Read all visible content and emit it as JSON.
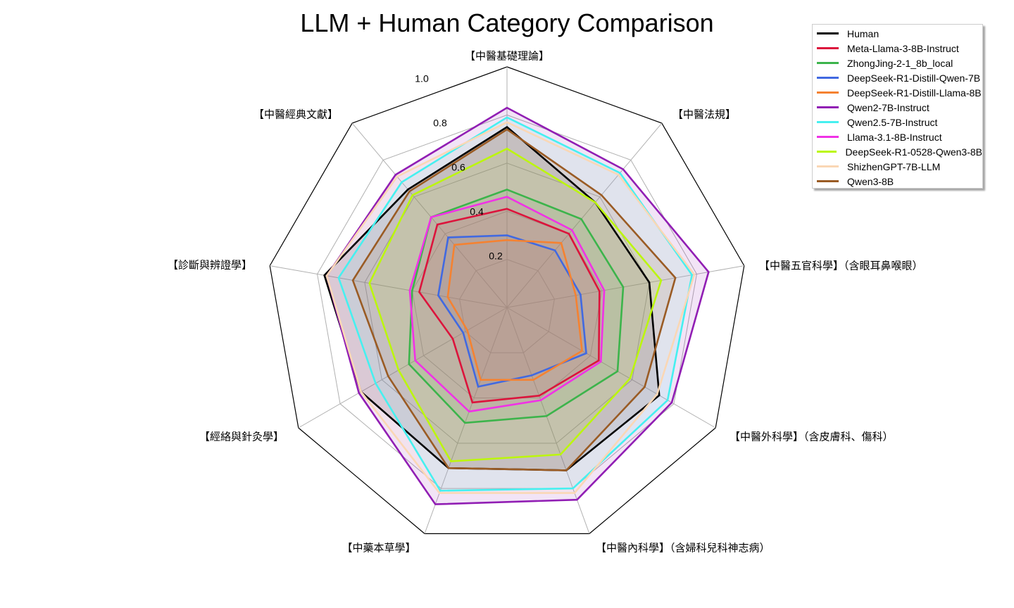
{
  "chart_data": {
    "type": "radar",
    "title": "LLM + Human Category Comparison",
    "categories": [
      "【中醫基礎理論】",
      "【中醫法規】",
      "【中醫五官科學】（含眼耳鼻喉眼）",
      "【中醫外科學】（含皮膚科、傷科）",
      "【中醫內科學】（含婦科兒科神志病）",
      "【中藥本草學】",
      "【經絡與針灸學】",
      "【診斷與辨證學】",
      "【中醫經典文獻】"
    ],
    "rlim": [
      0,
      1.0
    ],
    "rticks": [
      0.2,
      0.4,
      0.6,
      0.8,
      1.0
    ],
    "rtick_labels": [
      "0.2",
      "0.4",
      "0.6",
      "0.8",
      "1.0"
    ],
    "grid": true,
    "legend_position": "upper right",
    "series": [
      {
        "name": "Human",
        "color": "#000000",
        "values": [
          0.75,
          0.57,
          0.6,
          0.73,
          0.72,
          0.71,
          0.7,
          0.77,
          0.64
        ]
      },
      {
        "name": "Meta-Llama-3-8B-Instruct",
        "color": "#dc143c",
        "values": [
          0.41,
          0.4,
          0.39,
          0.44,
          0.39,
          0.42,
          0.26,
          0.37,
          0.45
        ]
      },
      {
        "name": "ZhongJing-2-1_8b_local",
        "color": "#3cb44b",
        "values": [
          0.49,
          0.48,
          0.49,
          0.53,
          0.48,
          0.51,
          0.47,
          0.4,
          0.49
        ]
      },
      {
        "name": "DeepSeek-R1-Distill-Qwen-7B",
        "color": "#4169e1",
        "values": [
          0.3,
          0.31,
          0.31,
          0.38,
          0.3,
          0.35,
          0.21,
          0.29,
          0.38
        ]
      },
      {
        "name": "DeepSeek-R1-Distill-Llama-8B",
        "color": "#f58231",
        "values": [
          0.28,
          0.35,
          0.29,
          0.36,
          0.32,
          0.32,
          0.19,
          0.25,
          0.34
        ]
      },
      {
        "name": "Qwen2-7B-Instruct",
        "color": "#911eb4",
        "values": [
          0.83,
          0.75,
          0.85,
          0.79,
          0.85,
          0.87,
          0.71,
          0.76,
          0.72
        ]
      },
      {
        "name": "Qwen2.5-7B-Instruct",
        "color": "#46f0f0",
        "values": [
          0.79,
          0.73,
          0.78,
          0.77,
          0.8,
          0.81,
          0.63,
          0.71,
          0.68
        ]
      },
      {
        "name": "Llama-3.1-8B-Instruct",
        "color": "#f032e6",
        "values": [
          0.46,
          0.42,
          0.41,
          0.45,
          0.41,
          0.46,
          0.44,
          0.41,
          0.49
        ]
      },
      {
        "name": "DeepSeek-R1-0528-Qwen3-8B",
        "color": "#bcf60c",
        "values": [
          0.66,
          0.57,
          0.65,
          0.59,
          0.65,
          0.68,
          0.52,
          0.58,
          0.61
        ]
      },
      {
        "name": "ShizhenGPT-7B-LLM",
        "color": "#fad7b5",
        "values": [
          0.77,
          0.72,
          0.79,
          0.72,
          0.82,
          0.82,
          0.7,
          0.76,
          0.71
        ]
      },
      {
        "name": "Qwen3-8B",
        "color": "#9a5b24",
        "values": [
          0.74,
          0.61,
          0.71,
          0.66,
          0.72,
          0.71,
          0.57,
          0.65,
          0.63
        ]
      }
    ]
  },
  "legend": {
    "items": [
      {
        "label": "Human",
        "color": "#000000"
      },
      {
        "label": "Meta-Llama-3-8B-Instruct",
        "color": "#dc143c"
      },
      {
        "label": "ZhongJing-2-1_8b_local",
        "color": "#3cb44b"
      },
      {
        "label": "DeepSeek-R1-Distill-Qwen-7B",
        "color": "#4169e1"
      },
      {
        "label": "DeepSeek-R1-Distill-Llama-8B",
        "color": "#f58231"
      },
      {
        "label": "Qwen2-7B-Instruct",
        "color": "#911eb4"
      },
      {
        "label": "Qwen2.5-7B-Instruct",
        "color": "#46f0f0"
      },
      {
        "label": "Llama-3.1-8B-Instruct",
        "color": "#f032e6"
      },
      {
        "label": "DeepSeek-R1-0528-Qwen3-8B",
        "color": "#bcf60c"
      },
      {
        "label": "ShizhenGPT-7B-LLM",
        "color": "#fad7b5"
      },
      {
        "label": "Qwen3-8B",
        "color": "#9a5b24"
      }
    ]
  }
}
